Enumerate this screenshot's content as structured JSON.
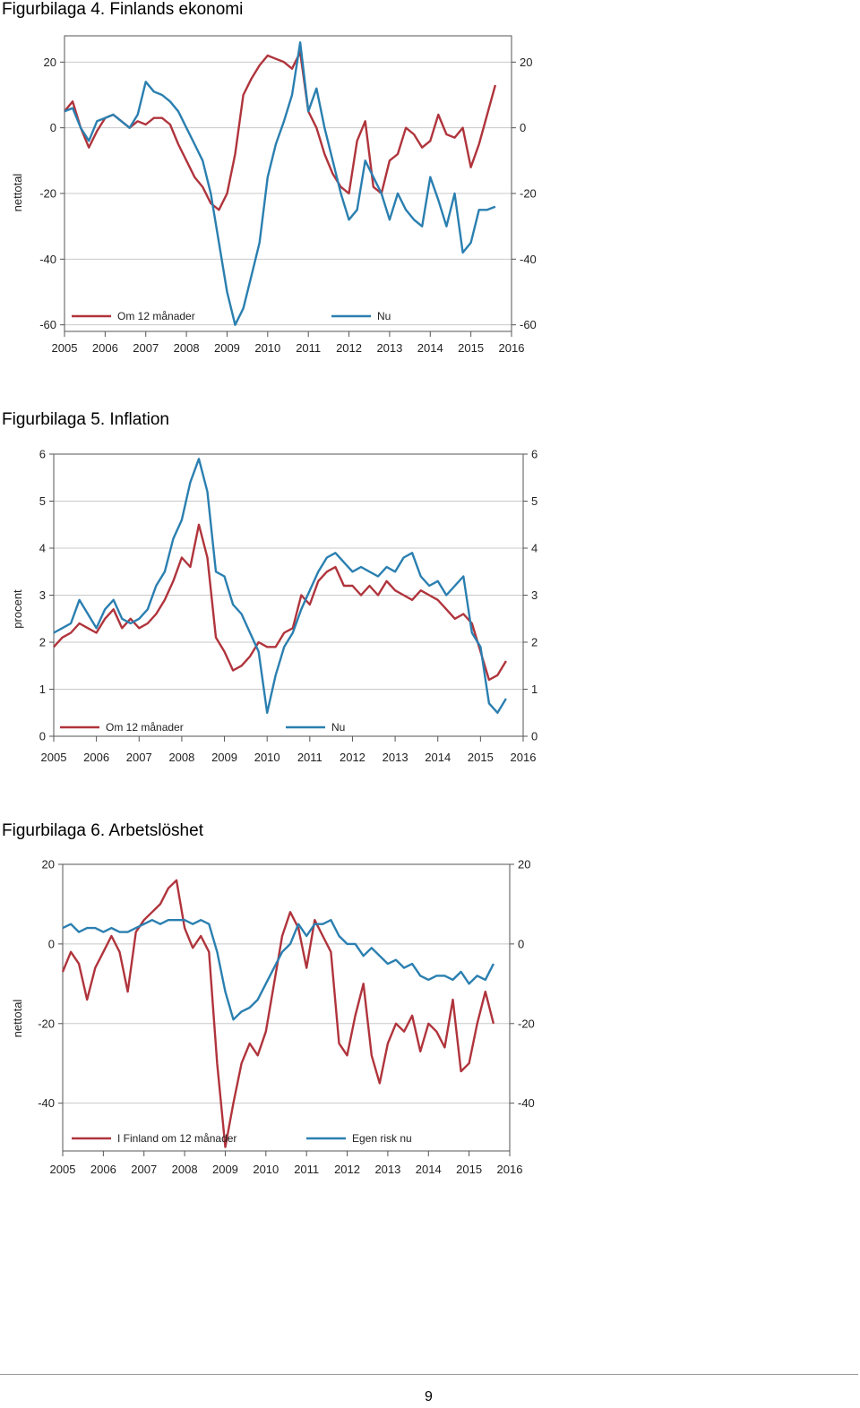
{
  "page": {
    "number": "9"
  },
  "colors": {
    "red_series": "#b0343c",
    "blue_series": "#2a7fb0",
    "grid": "#c8c8c8",
    "axis": "#555555"
  },
  "figures": [
    {
      "title": "Figurbilaga 4. Finlands ekonomi"
    },
    {
      "title": "Figurbilaga 5. Inflation"
    },
    {
      "title": "Figurbilaga 6. Arbetslöshet"
    }
  ],
  "chart_data": [
    {
      "type": "line",
      "title": "Figurbilaga 4. Finlands ekonomi",
      "ylabel": "nettotal",
      "xlim": [
        2005,
        2016
      ],
      "ylim": [
        -62,
        28
      ],
      "yticks": [
        20,
        0,
        -20,
        -40,
        -60
      ],
      "xticks": [
        2005,
        2006,
        2007,
        2008,
        2009,
        2010,
        2011,
        2012,
        2013,
        2014,
        2015,
        2016
      ],
      "grid": true,
      "legend_position": "bottom-left",
      "series": [
        {
          "name": "Om 12 månader",
          "color": "#b0343c",
          "x": [
            2005.0,
            2005.2,
            2005.4,
            2005.6,
            2005.8,
            2006.0,
            2006.2,
            2006.4,
            2006.6,
            2006.8,
            2007.0,
            2007.2,
            2007.4,
            2007.6,
            2007.8,
            2008.0,
            2008.2,
            2008.4,
            2008.6,
            2008.8,
            2009.0,
            2009.2,
            2009.4,
            2009.6,
            2009.8,
            2010.0,
            2010.2,
            2010.4,
            2010.6,
            2010.8,
            2011.0,
            2011.2,
            2011.4,
            2011.6,
            2011.8,
            2012.0,
            2012.2,
            2012.4,
            2012.6,
            2012.8,
            2013.0,
            2013.2,
            2013.4,
            2013.6,
            2013.8,
            2014.0,
            2014.2,
            2014.4,
            2014.6,
            2014.8,
            2015.0,
            2015.2,
            2015.4,
            2015.6
          ],
          "y": [
            5,
            8,
            0,
            -6,
            -1,
            3,
            4,
            2,
            0,
            2,
            1,
            3,
            3,
            1,
            -5,
            -10,
            -15,
            -18,
            -23,
            -25,
            -20,
            -8,
            10,
            15,
            19,
            22,
            21,
            20,
            18,
            23,
            5,
            0,
            -8,
            -14,
            -18,
            -20,
            -4,
            2,
            -18,
            -20,
            -10,
            -8,
            0,
            -2,
            -6,
            -4,
            4,
            -2,
            -3,
            0,
            -12,
            -5,
            4,
            13
          ]
        },
        {
          "name": "Nu",
          "color": "#2a7fb0",
          "x": [
            2005.0,
            2005.2,
            2005.4,
            2005.6,
            2005.8,
            2006.0,
            2006.2,
            2006.4,
            2006.6,
            2006.8,
            2007.0,
            2007.2,
            2007.4,
            2007.6,
            2007.8,
            2008.0,
            2008.2,
            2008.4,
            2008.6,
            2008.8,
            2009.0,
            2009.2,
            2009.4,
            2009.6,
            2009.8,
            2010.0,
            2010.2,
            2010.4,
            2010.6,
            2010.8,
            2011.0,
            2011.2,
            2011.4,
            2011.6,
            2011.8,
            2012.0,
            2012.2,
            2012.4,
            2012.6,
            2012.8,
            2013.0,
            2013.2,
            2013.4,
            2013.6,
            2013.8,
            2014.0,
            2014.2,
            2014.4,
            2014.6,
            2014.8,
            2015.0,
            2015.2,
            2015.4,
            2015.6
          ],
          "y": [
            5,
            6,
            0,
            -4,
            2,
            3,
            4,
            2,
            0,
            4,
            14,
            11,
            10,
            8,
            5,
            0,
            -5,
            -10,
            -20,
            -35,
            -50,
            -60,
            -55,
            -45,
            -35,
            -15,
            -5,
            2,
            10,
            26,
            5,
            12,
            0,
            -10,
            -20,
            -28,
            -25,
            -10,
            -15,
            -20,
            -28,
            -20,
            -25,
            -28,
            -30,
            -15,
            -22,
            -30,
            -20,
            -38,
            -35,
            -25,
            -25,
            -24
          ]
        }
      ]
    },
    {
      "type": "line",
      "title": "Figurbilaga 5. Inflation",
      "ylabel": "procent",
      "xlim": [
        2005,
        2016
      ],
      "ylim": [
        0,
        6
      ],
      "yticks": [
        6,
        5,
        4,
        3,
        2,
        1,
        0
      ],
      "xticks": [
        2005,
        2006,
        2007,
        2008,
        2009,
        2010,
        2011,
        2012,
        2013,
        2014,
        2015,
        2016
      ],
      "grid": true,
      "legend_position": "bottom-left",
      "series": [
        {
          "name": "Om 12 månader",
          "color": "#b0343c",
          "x": [
            2005.0,
            2005.2,
            2005.4,
            2005.6,
            2005.8,
            2006.0,
            2006.2,
            2006.4,
            2006.6,
            2006.8,
            2007.0,
            2007.2,
            2007.4,
            2007.6,
            2007.8,
            2008.0,
            2008.2,
            2008.4,
            2008.6,
            2008.8,
            2009.0,
            2009.2,
            2009.4,
            2009.6,
            2009.8,
            2010.0,
            2010.2,
            2010.4,
            2010.6,
            2010.8,
            2011.0,
            2011.2,
            2011.4,
            2011.6,
            2011.8,
            2012.0,
            2012.2,
            2012.4,
            2012.6,
            2012.8,
            2013.0,
            2013.2,
            2013.4,
            2013.6,
            2013.8,
            2014.0,
            2014.2,
            2014.4,
            2014.6,
            2014.8,
            2015.0,
            2015.2,
            2015.4,
            2015.6
          ],
          "y": [
            1.9,
            2.1,
            2.2,
            2.4,
            2.3,
            2.2,
            2.5,
            2.7,
            2.3,
            2.5,
            2.3,
            2.4,
            2.6,
            2.9,
            3.3,
            3.8,
            3.6,
            4.5,
            3.8,
            2.1,
            1.8,
            1.4,
            1.5,
            1.7,
            2.0,
            1.9,
            1.9,
            2.2,
            2.3,
            3.0,
            2.8,
            3.3,
            3.5,
            3.6,
            3.2,
            3.2,
            3.0,
            3.2,
            3.0,
            3.3,
            3.1,
            3.0,
            2.9,
            3.1,
            3.0,
            2.9,
            2.7,
            2.5,
            2.6,
            2.4,
            1.8,
            1.2,
            1.3,
            1.6
          ]
        },
        {
          "name": "Nu",
          "color": "#2a7fb0",
          "x": [
            2005.0,
            2005.2,
            2005.4,
            2005.6,
            2005.8,
            2006.0,
            2006.2,
            2006.4,
            2006.6,
            2006.8,
            2007.0,
            2007.2,
            2007.4,
            2007.6,
            2007.8,
            2008.0,
            2008.2,
            2008.4,
            2008.6,
            2008.8,
            2009.0,
            2009.2,
            2009.4,
            2009.6,
            2009.8,
            2010.0,
            2010.2,
            2010.4,
            2010.6,
            2010.8,
            2011.0,
            2011.2,
            2011.4,
            2011.6,
            2011.8,
            2012.0,
            2012.2,
            2012.4,
            2012.6,
            2012.8,
            2013.0,
            2013.2,
            2013.4,
            2013.6,
            2013.8,
            2014.0,
            2014.2,
            2014.4,
            2014.6,
            2014.8,
            2015.0,
            2015.2,
            2015.4,
            2015.6
          ],
          "y": [
            2.2,
            2.3,
            2.4,
            2.9,
            2.6,
            2.3,
            2.7,
            2.9,
            2.5,
            2.4,
            2.5,
            2.7,
            3.2,
            3.5,
            4.2,
            4.6,
            5.4,
            5.9,
            5.2,
            3.5,
            3.4,
            2.8,
            2.6,
            2.2,
            1.8,
            0.5,
            1.3,
            1.9,
            2.2,
            2.7,
            3.1,
            3.5,
            3.8,
            3.9,
            3.7,
            3.5,
            3.6,
            3.5,
            3.4,
            3.6,
            3.5,
            3.8,
            3.9,
            3.4,
            3.2,
            3.3,
            3.0,
            3.2,
            3.4,
            2.2,
            1.9,
            0.7,
            0.5,
            0.8
          ]
        }
      ]
    },
    {
      "type": "line",
      "title": "Figurbilaga 6. Arbetslöshet",
      "ylabel": "nettotal",
      "xlim": [
        2005,
        2016
      ],
      "ylim": [
        -52,
        20
      ],
      "yticks": [
        20,
        0,
        -20,
        -40
      ],
      "xticks": [
        2005,
        2006,
        2007,
        2008,
        2009,
        2010,
        2011,
        2012,
        2013,
        2014,
        2015,
        2016
      ],
      "grid": true,
      "legend_position": "bottom-left",
      "series": [
        {
          "name": "I Finland om 12 månader",
          "color": "#b0343c",
          "x": [
            2005.0,
            2005.2,
            2005.4,
            2005.6,
            2005.8,
            2006.0,
            2006.2,
            2006.4,
            2006.6,
            2006.8,
            2007.0,
            2007.2,
            2007.4,
            2007.6,
            2007.8,
            2008.0,
            2008.2,
            2008.4,
            2008.6,
            2008.8,
            2009.0,
            2009.2,
            2009.4,
            2009.6,
            2009.8,
            2010.0,
            2010.2,
            2010.4,
            2010.6,
            2010.8,
            2011.0,
            2011.2,
            2011.4,
            2011.6,
            2011.8,
            2012.0,
            2012.2,
            2012.4,
            2012.6,
            2012.8,
            2013.0,
            2013.2,
            2013.4,
            2013.6,
            2013.8,
            2014.0,
            2014.2,
            2014.4,
            2014.6,
            2014.8,
            2015.0,
            2015.2,
            2015.4,
            2015.6
          ],
          "y": [
            -7,
            -2,
            -5,
            -14,
            -6,
            -2,
            2,
            -2,
            -12,
            3,
            6,
            8,
            10,
            14,
            16,
            4,
            -1,
            2,
            -2,
            -30,
            -51,
            -40,
            -30,
            -25,
            -28,
            -22,
            -10,
            2,
            8,
            4,
            -6,
            6,
            2,
            -2,
            -25,
            -28,
            -18,
            -10,
            -28,
            -35,
            -25,
            -20,
            -22,
            -18,
            -27,
            -20,
            -22,
            -26,
            -14,
            -32,
            -30,
            -20,
            -12,
            -20
          ]
        },
        {
          "name": "Egen risk nu",
          "color": "#2a7fb0",
          "x": [
            2005.0,
            2005.2,
            2005.4,
            2005.6,
            2005.8,
            2006.0,
            2006.2,
            2006.4,
            2006.6,
            2006.8,
            2007.0,
            2007.2,
            2007.4,
            2007.6,
            2007.8,
            2008.0,
            2008.2,
            2008.4,
            2008.6,
            2008.8,
            2009.0,
            2009.2,
            2009.4,
            2009.6,
            2009.8,
            2010.0,
            2010.2,
            2010.4,
            2010.6,
            2010.8,
            2011.0,
            2011.2,
            2011.4,
            2011.6,
            2011.8,
            2012.0,
            2012.2,
            2012.4,
            2012.6,
            2012.8,
            2013.0,
            2013.2,
            2013.4,
            2013.6,
            2013.8,
            2014.0,
            2014.2,
            2014.4,
            2014.6,
            2014.8,
            2015.0,
            2015.2,
            2015.4,
            2015.6
          ],
          "y": [
            4,
            5,
            3,
            4,
            4,
            3,
            4,
            3,
            3,
            4,
            5,
            6,
            5,
            6,
            6,
            6,
            5,
            6,
            5,
            -2,
            -12,
            -19,
            -17,
            -16,
            -14,
            -10,
            -6,
            -2,
            0,
            5,
            2,
            5,
            5,
            6,
            2,
            0,
            0,
            -3,
            -1,
            -3,
            -5,
            -4,
            -6,
            -5,
            -8,
            -9,
            -8,
            -8,
            -9,
            -7,
            -10,
            -8,
            -9,
            -5
          ]
        }
      ]
    }
  ]
}
